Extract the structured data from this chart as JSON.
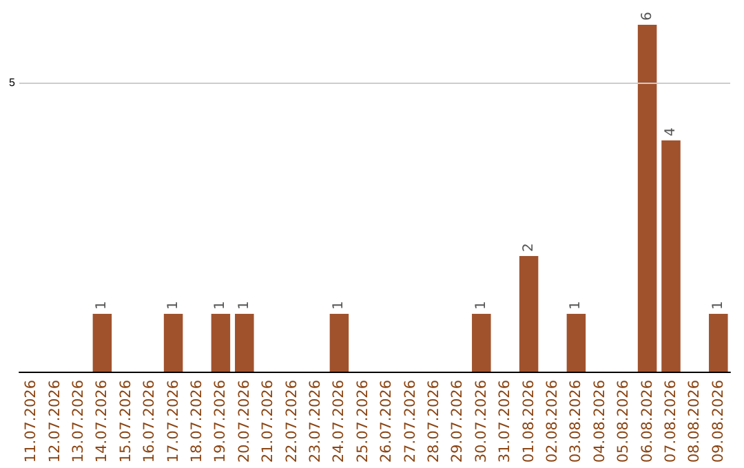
{
  "chart_data": {
    "type": "bar",
    "categories": [
      "11.07.2026",
      "12.07.2026",
      "13.07.2026",
      "14.07.2026",
      "15.07.2026",
      "16.07.2026",
      "17.07.2026",
      "18.07.2026",
      "19.07.2026",
      "20.07.2026",
      "21.07.2026",
      "22.07.2026",
      "23.07.2026",
      "24.07.2026",
      "25.07.2026",
      "26.07.2026",
      "27.07.2026",
      "28.07.2026",
      "29.07.2026",
      "30.07.2026",
      "31.07.2026",
      "01.08.2026",
      "02.08.2026",
      "03.08.2026",
      "04.08.2026",
      "05.08.2026",
      "06.08.2026",
      "07.08.2026",
      "08.08.2026",
      "09.08.2026"
    ],
    "values": [
      0,
      0,
      0,
      1,
      0,
      0,
      1,
      0,
      1,
      1,
      0,
      0,
      0,
      1,
      0,
      0,
      0,
      0,
      0,
      1,
      0,
      2,
      0,
      1,
      0,
      0,
      6,
      4,
      0,
      1
    ],
    "value_labels": [
      null,
      null,
      null,
      "1",
      null,
      null,
      "1",
      null,
      "1",
      "1",
      null,
      null,
      null,
      "1",
      null,
      null,
      null,
      null,
      null,
      "1",
      null,
      "2",
      null,
      "1",
      null,
      null,
      "6",
      "4",
      null,
      "1"
    ],
    "color": "#a0522d",
    "ref_lines": [
      {
        "axis": "y",
        "value": 5,
        "label": "5",
        "color": "#cccccc"
      }
    ]
  }
}
